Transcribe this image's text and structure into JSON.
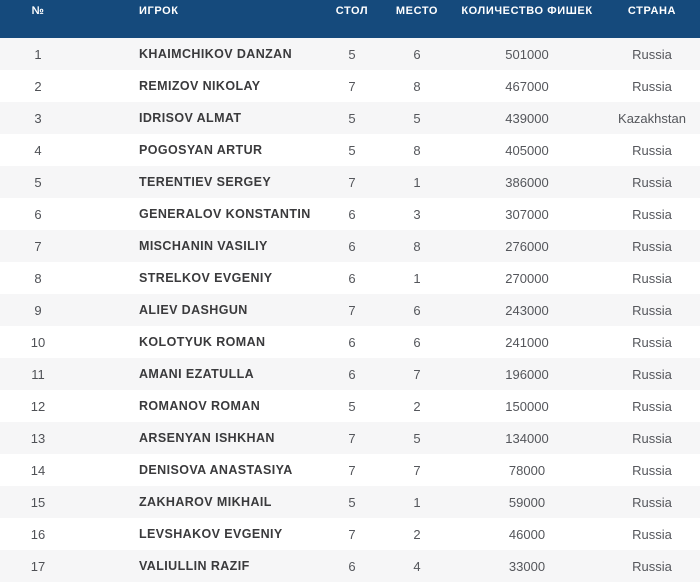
{
  "table": {
    "columns": {
      "rank_label": "№",
      "player_label": "ИГРОК",
      "table_label": "СТОЛ",
      "seat_label": "МЕСТО",
      "chips_label": "КОЛИЧЕСТВО ФИШЕК",
      "country_label": "СТРАНА"
    },
    "rows": [
      {
        "rank": "1",
        "player": "KHAIMCHIKOV DANZAN",
        "table": "5",
        "seat": "6",
        "chips": "501000",
        "country": "Russia"
      },
      {
        "rank": "2",
        "player": "REMIZOV NIKOLAY",
        "table": "7",
        "seat": "8",
        "chips": "467000",
        "country": "Russia"
      },
      {
        "rank": "3",
        "player": "IDRISOV ALMAT",
        "table": "5",
        "seat": "5",
        "chips": "439000",
        "country": "Kazakhstan"
      },
      {
        "rank": "4",
        "player": "POGOSYAN ARTUR",
        "table": "5",
        "seat": "8",
        "chips": "405000",
        "country": "Russia"
      },
      {
        "rank": "5",
        "player": "TERENTIEV SERGEY",
        "table": "7",
        "seat": "1",
        "chips": "386000",
        "country": "Russia"
      },
      {
        "rank": "6",
        "player": "GENERALOV KONSTANTIN",
        "table": "6",
        "seat": "3",
        "chips": "307000",
        "country": "Russia"
      },
      {
        "rank": "7",
        "player": "MISCHANIN VASILIY",
        "table": "6",
        "seat": "8",
        "chips": "276000",
        "country": "Russia"
      },
      {
        "rank": "8",
        "player": "STRELKOV EVGENIY",
        "table": "6",
        "seat": "1",
        "chips": "270000",
        "country": "Russia"
      },
      {
        "rank": "9",
        "player": "ALIEV DASHGUN",
        "table": "7",
        "seat": "6",
        "chips": "243000",
        "country": "Russia"
      },
      {
        "rank": "10",
        "player": "KOLOTYUK ROMAN",
        "table": "6",
        "seat": "6",
        "chips": "241000",
        "country": "Russia"
      },
      {
        "rank": "11",
        "player": "AMANI EZATULLA",
        "table": "6",
        "seat": "7",
        "chips": "196000",
        "country": "Russia"
      },
      {
        "rank": "12",
        "player": "ROMANOV ROMAN",
        "table": "5",
        "seat": "2",
        "chips": "150000",
        "country": "Russia"
      },
      {
        "rank": "13",
        "player": "ARSENYAN ISHKHAN",
        "table": "7",
        "seat": "5",
        "chips": "134000",
        "country": "Russia"
      },
      {
        "rank": "14",
        "player": "DENISOVA ANASTASIYA",
        "table": "7",
        "seat": "7",
        "chips": "78000",
        "country": "Russia"
      },
      {
        "rank": "15",
        "player": "ZAKHAROV MIKHAIL",
        "table": "5",
        "seat": "1",
        "chips": "59000",
        "country": "Russia"
      },
      {
        "rank": "16",
        "player": "LEVSHAKOV EVGENIY",
        "table": "7",
        "seat": "2",
        "chips": "46000",
        "country": "Russia"
      },
      {
        "rank": "17",
        "player": "VALIULLIN RAZIF",
        "table": "6",
        "seat": "4",
        "chips": "33000",
        "country": "Russia"
      }
    ]
  },
  "colors": {
    "header_background": "#154a7c",
    "header_text": "#ffffff",
    "row_alt_background": "#f6f6f7",
    "row_background": "#ffffff",
    "player_text": "#3a3a3c",
    "value_text": "#54565b"
  }
}
